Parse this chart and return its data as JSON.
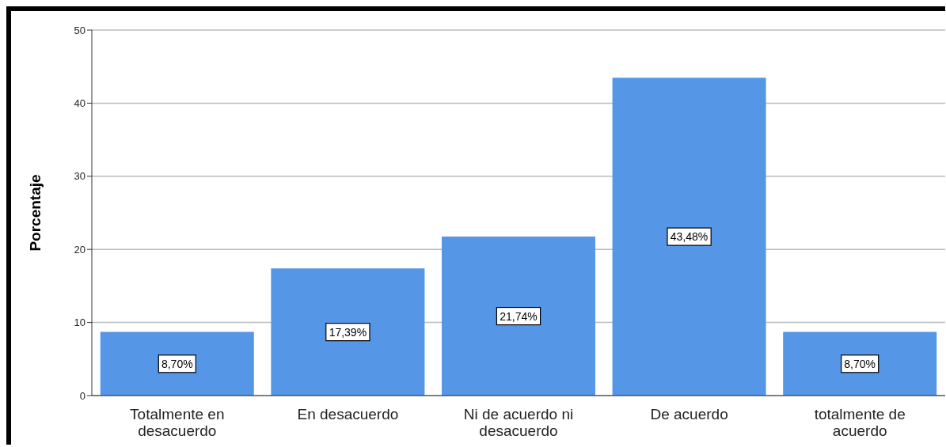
{
  "chart_data": {
    "type": "bar",
    "ylabel": "Porcentaje",
    "categories": [
      "Totalmente en desacuerdo",
      "En desacuerdo",
      "Ni de acuerdo ni desacuerdo",
      "De acuerdo",
      "totalmente de acuerdo"
    ],
    "values": [
      8.7,
      17.39,
      21.74,
      43.48,
      8.7
    ],
    "value_labels": [
      "8,70%",
      "17,39%",
      "21,74%",
      "43,48%",
      "8,70%"
    ],
    "color": "#5596e6",
    "ylim": [
      0,
      50
    ],
    "yticks": [
      0,
      10,
      20,
      30,
      40,
      50
    ],
    "grid": "y"
  }
}
